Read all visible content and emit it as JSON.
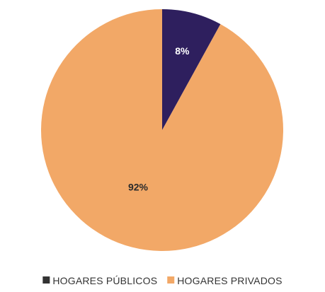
{
  "chart_data": {
    "type": "pie",
    "title": "",
    "start_angle_deg": 0,
    "direction": "clockwise",
    "legend_position": "bottom",
    "slices": [
      {
        "name": "HOGARES PÚBLICOS",
        "value": 8,
        "label": "8%",
        "color": "#2e1f5e",
        "label_color": "#ffffff"
      },
      {
        "name": "HOGARES PRIVADOS",
        "value": 92,
        "label": "92%",
        "color": "#f2a867",
        "label_color": "#2b2b2b"
      }
    ]
  }
}
